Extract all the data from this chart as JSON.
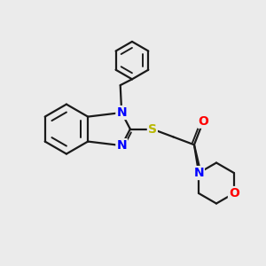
{
  "background_color": "#ebebeb",
  "bond_color": "#1a1a1a",
  "N_color": "#0000ff",
  "O_color": "#ff0000",
  "S_color": "#b8b800",
  "line_width": 1.6,
  "figsize": [
    3.0,
    3.0
  ],
  "dpi": 100,
  "xlim": [
    0,
    10
  ],
  "ylim": [
    0,
    10
  ]
}
